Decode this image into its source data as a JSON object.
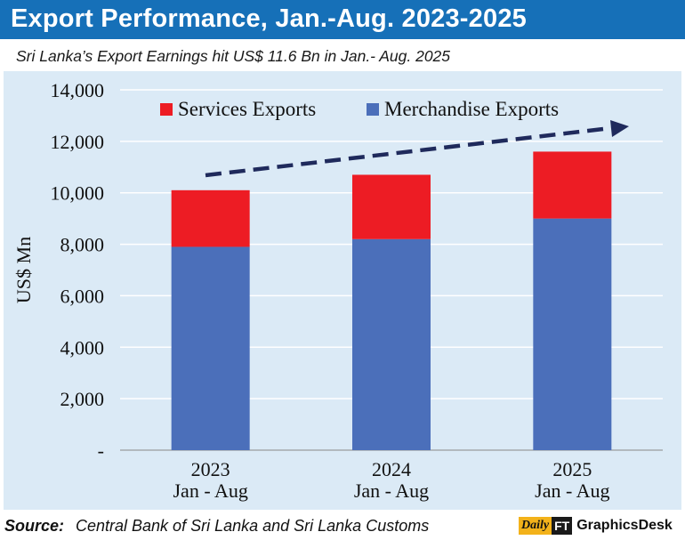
{
  "header": {
    "title": "Export Performance, Jan.-Aug. 2023-2025"
  },
  "subtitle": "Sri Lanka’s Export Earnings hit US$ 11.6 Bn in Jan.- Aug. 2025",
  "footer": {
    "source_label": "Source:",
    "source_text": "Central Bank of Sri Lanka and Sri Lanka Customs",
    "logo_daily": "Daily",
    "logo_ft": "FT",
    "logo_gd": "GraphicsDesk"
  },
  "colors": {
    "header_band": "#1670b8",
    "panel": "#dbeaf6",
    "services": "#ed1c24",
    "merchandise": "#4b6fba",
    "trend_arrow": "#1f2a5c"
  },
  "chart_data": {
    "type": "bar",
    "stacked": true,
    "categories": [
      "2023",
      "2024",
      "2025"
    ],
    "category_sublabels": [
      "Jan - Aug",
      "Jan - Aug",
      "Jan - Aug"
    ],
    "series": [
      {
        "name": "Merchandise Exports",
        "values": [
          7900,
          8200,
          9000
        ]
      },
      {
        "name": "Services Exports",
        "values": [
          2200,
          2500,
          2600
        ]
      }
    ],
    "ylabel": "US$ Mn",
    "ylim": [
      0,
      14000
    ],
    "yticks": [
      0,
      2000,
      4000,
      6000,
      8000,
      10000,
      12000,
      14000
    ],
    "ytick_labels": [
      "-",
      "2,000",
      "4,000",
      "6,000",
      "8,000",
      "10,000",
      "12,000",
      "14,000"
    ],
    "legend_position": "top",
    "grid": true,
    "annotation": "upward dashed trend arrow"
  }
}
